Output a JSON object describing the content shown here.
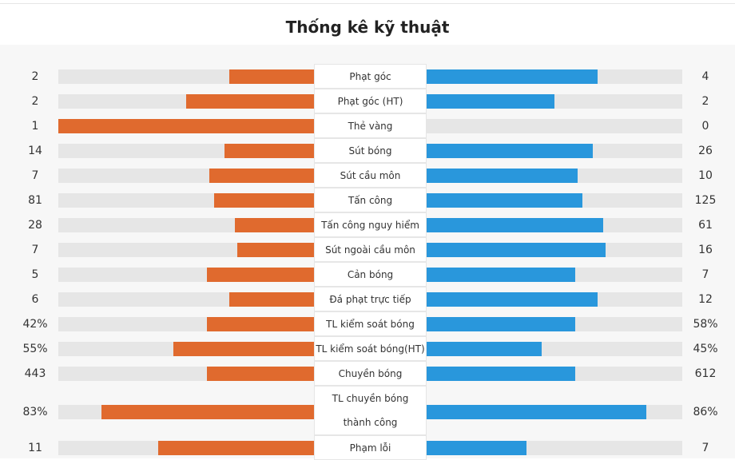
{
  "title": "Thống kê kỹ thuật",
  "colors": {
    "home": "#e06a2e",
    "away": "#2997dc",
    "track": "#e6e6e6"
  },
  "stats": [
    {
      "label": "Phạt góc",
      "home": "2",
      "away": "4",
      "home_frac": 0.33,
      "away_frac": 0.67
    },
    {
      "label": "Phạt góc (HT)",
      "home": "2",
      "away": "2",
      "home_frac": 0.5,
      "away_frac": 0.5
    },
    {
      "label": "Thẻ vàng",
      "home": "1",
      "away": "0",
      "home_frac": 1.0,
      "away_frac": 0.0
    },
    {
      "label": "Sút bóng",
      "home": "14",
      "away": "26",
      "home_frac": 0.35,
      "away_frac": 0.65
    },
    {
      "label": "Sút cầu môn",
      "home": "7",
      "away": "10",
      "home_frac": 0.41,
      "away_frac": 0.59
    },
    {
      "label": "Tấn công",
      "home": "81",
      "away": "125",
      "home_frac": 0.39,
      "away_frac": 0.61
    },
    {
      "label": "Tấn công nguy hiểm",
      "home": "28",
      "away": "61",
      "home_frac": 0.31,
      "away_frac": 0.69
    },
    {
      "label": "Sút ngoài cầu môn",
      "home": "7",
      "away": "16",
      "home_frac": 0.3,
      "away_frac": 0.7
    },
    {
      "label": "Cản bóng",
      "home": "5",
      "away": "7",
      "home_frac": 0.42,
      "away_frac": 0.58
    },
    {
      "label": "Đá phạt trực tiếp",
      "home": "6",
      "away": "12",
      "home_frac": 0.33,
      "away_frac": 0.67
    },
    {
      "label": "TL kiểm soát bóng",
      "home": "42%",
      "away": "58%",
      "home_frac": 0.42,
      "away_frac": 0.58
    },
    {
      "label": "TL kiểm soát bóng(HT)",
      "home": "55%",
      "away": "45%",
      "home_frac": 0.55,
      "away_frac": 0.45
    },
    {
      "label": "Chuyền bóng",
      "home": "443",
      "away": "612",
      "home_frac": 0.42,
      "away_frac": 0.58
    },
    {
      "label": "TL chuyền bóng thành công",
      "home": "83%",
      "away": "86%",
      "home_frac": 0.83,
      "away_frac": 0.86
    },
    {
      "label": "Phạm lỗi",
      "home": "11",
      "away": "7",
      "home_frac": 0.61,
      "away_frac": 0.39
    }
  ]
}
